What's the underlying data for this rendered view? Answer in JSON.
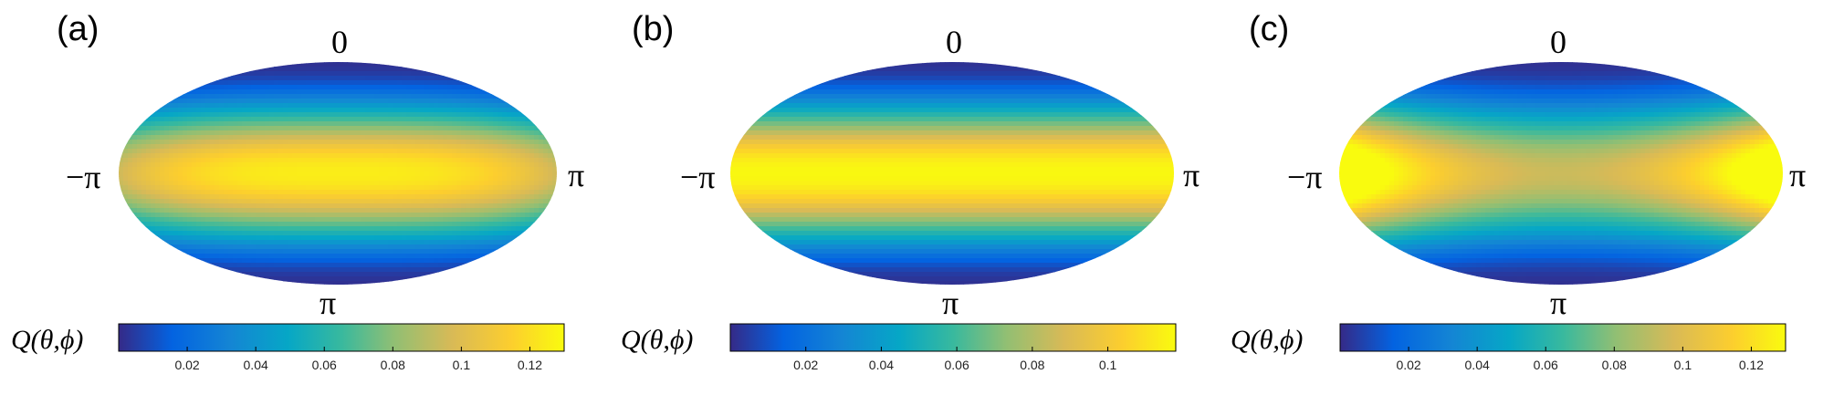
{
  "chart_data": [
    {
      "type": "heatmap",
      "panel_label": "(a)",
      "projection": "Mollweide-like ellipse",
      "top_label": "0",
      "bottom_label": "π",
      "left_label": "−π",
      "right_label": "π",
      "colorbar_label": "Q(θ,ϕ)",
      "colorbar_ticks": [
        "0.02",
        "0.04",
        "0.06",
        "0.08",
        "0.1",
        "0.12"
      ],
      "colorbar_tick_values": [
        0.02,
        0.04,
        0.06,
        0.08,
        0.1,
        0.12
      ],
      "colorbar_range": [
        0.0,
        0.13
      ],
      "colormap": "parula",
      "pattern": {
        "equator_peak": 0.125,
        "pole_min": 0.002,
        "phi_modulation": 0.0,
        "edge_drop": 0.03
      }
    },
    {
      "type": "heatmap",
      "panel_label": "(b)",
      "projection": "Mollweide-like ellipse",
      "top_label": "0",
      "bottom_label": "π",
      "left_label": "−π",
      "right_label": "π",
      "colorbar_label": "Q(θ,ϕ)",
      "colorbar_ticks": [
        "0.02",
        "0.04",
        "0.06",
        "0.08",
        "0.1"
      ],
      "colorbar_tick_values": [
        0.02,
        0.04,
        0.06,
        0.08,
        0.1
      ],
      "colorbar_range": [
        0.0,
        0.118
      ],
      "colormap": "parula",
      "pattern": {
        "equator_peak": 0.117,
        "pole_min": 0.002,
        "phi_modulation": 0.0,
        "edge_drop": 0.0
      }
    },
    {
      "type": "heatmap",
      "panel_label": "(c)",
      "projection": "Mollweide-like ellipse",
      "top_label": "0",
      "bottom_label": "π",
      "left_label": "−π",
      "right_label": "π",
      "colorbar_label": "Q(θ,ϕ)",
      "colorbar_ticks": [
        "0.02",
        "0.04",
        "0.06",
        "0.08",
        "0.1",
        "0.12"
      ],
      "colorbar_tick_values": [
        0.02,
        0.04,
        0.06,
        0.08,
        0.1,
        0.12
      ],
      "colorbar_range": [
        0.0,
        0.13
      ],
      "colormap": "parula",
      "pattern": {
        "equator_peak": 0.125,
        "pole_min": 0.002,
        "phi_modulation": 0.25,
        "edge_drop": 0.0
      }
    }
  ],
  "colors": {
    "parula": [
      "#352a87",
      "#0363e1",
      "#1485d4",
      "#06a7c6",
      "#38b99e",
      "#92bf73",
      "#d9ba56",
      "#fcce2e",
      "#f9fb0e"
    ]
  }
}
